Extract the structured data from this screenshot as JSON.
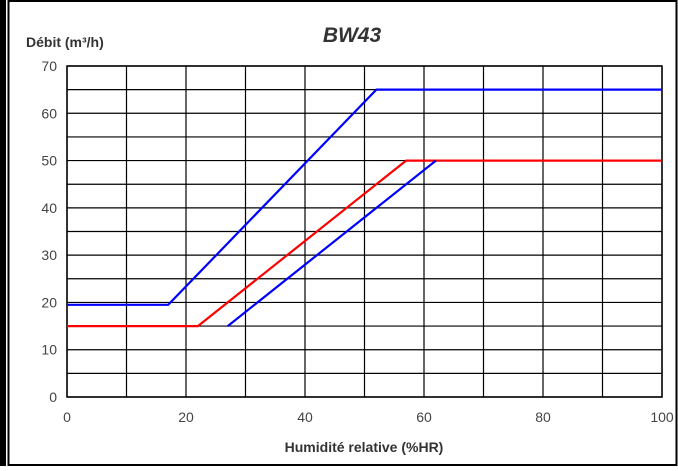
{
  "chart_data": {
    "type": "line",
    "title": "BW43",
    "ylabel": "Débit (m³/h)",
    "xlabel": "Humidité relative (%HR)",
    "xlim": [
      0,
      100
    ],
    "ylim": [
      0,
      70
    ],
    "x_ticks": [
      0,
      20,
      40,
      60,
      80,
      100
    ],
    "y_ticks": [
      0,
      10,
      20,
      30,
      40,
      50,
      60,
      70
    ],
    "x_grid_step": 10,
    "y_grid_step": 5,
    "grid": true,
    "series": [
      {
        "color": "#0000ff",
        "points": [
          [
            0,
            19.5
          ],
          [
            17,
            19.5
          ],
          [
            52,
            65
          ],
          [
            100,
            65
          ]
        ]
      },
      {
        "color": "#ff0000",
        "points": [
          [
            0,
            15
          ],
          [
            22,
            15
          ],
          [
            57,
            50
          ],
          [
            100,
            50
          ]
        ]
      },
      {
        "color": "#0000ff",
        "points": [
          [
            27,
            15
          ],
          [
            62,
            50
          ]
        ]
      }
    ]
  }
}
